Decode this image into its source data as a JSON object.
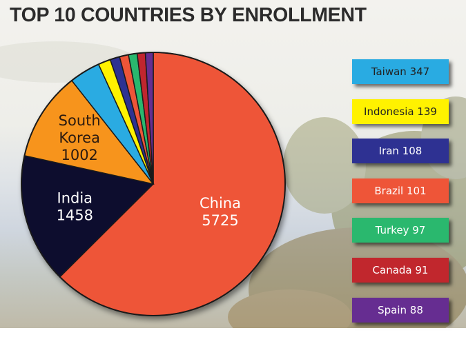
{
  "title": "TOP 10 COUNTRIES BY ENROLLMENT",
  "chart_data": {
    "type": "pie",
    "title": "TOP 10 COUNTRIES BY ENROLLMENT",
    "slices": [
      {
        "name": "China",
        "value": 5725,
        "color": "#ee5538"
      },
      {
        "name": "India",
        "value": 1458,
        "color": "#0c0a2e"
      },
      {
        "name": "South Korea",
        "value": 1002,
        "color": "#f7941d"
      },
      {
        "name": "Taiwan",
        "value": 347,
        "color": "#29abe2"
      },
      {
        "name": "Indonesia",
        "value": 139,
        "color": "#fff200"
      },
      {
        "name": "Iran",
        "value": 108,
        "color": "#2e3192"
      },
      {
        "name": "Brazil",
        "value": 101,
        "color": "#ee5538"
      },
      {
        "name": "Turkey",
        "value": 97,
        "color": "#2ab86e"
      },
      {
        "name": "Canada",
        "value": 91,
        "color": "#c1272d"
      },
      {
        "name": "Spain",
        "value": 88,
        "color": "#662d91"
      }
    ],
    "slice_labels": [
      {
        "slice": "China",
        "lines": [
          "China",
          "5725"
        ],
        "light": true
      },
      {
        "slice": "India",
        "lines": [
          "India",
          "1458"
        ],
        "light": true
      },
      {
        "slice": "South Korea",
        "lines": [
          "South",
          "Korea",
          "1002"
        ],
        "light": false
      }
    ],
    "legend": [
      {
        "label": "Taiwan 347",
        "color": "#29abe2",
        "light": false
      },
      {
        "label": "Indonesia 139",
        "color": "#fff200",
        "light": false
      },
      {
        "label": "Iran 108",
        "color": "#2e3192",
        "light": true
      },
      {
        "label": "Brazil 101",
        "color": "#ee5538",
        "light": true
      },
      {
        "label": "Turkey 97",
        "color": "#2ab86e",
        "light": true
      },
      {
        "label": "Canada 91",
        "color": "#c1272d",
        "light": true
      },
      {
        "label": "Spain 88",
        "color": "#662d91",
        "light": true
      }
    ],
    "legend_placement": "right"
  }
}
